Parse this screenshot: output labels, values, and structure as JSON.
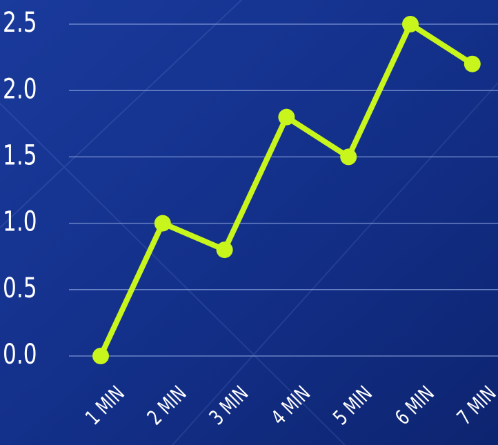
{
  "chart_data": {
    "type": "line",
    "categories": [
      "1 MIN",
      "2 MIN",
      "3 MIN",
      "4 MIN",
      "5 MIN",
      "6 MIN",
      "7 MIN"
    ],
    "series": [
      {
        "color": "#c8f51c",
        "values": [
          0,
          1.0,
          0.8,
          1.8,
          1.5,
          2.5,
          2.2
        ]
      }
    ],
    "ylim": [
      0,
      2.5
    ],
    "yticks": [
      {
        "value": 0,
        "label": "0.0"
      },
      0.5,
      {
        "value": 1,
        "label": "1.0"
      },
      1.5,
      {
        "value": 2,
        "label": "2.0"
      },
      2.5
    ],
    "grid": true
  }
}
